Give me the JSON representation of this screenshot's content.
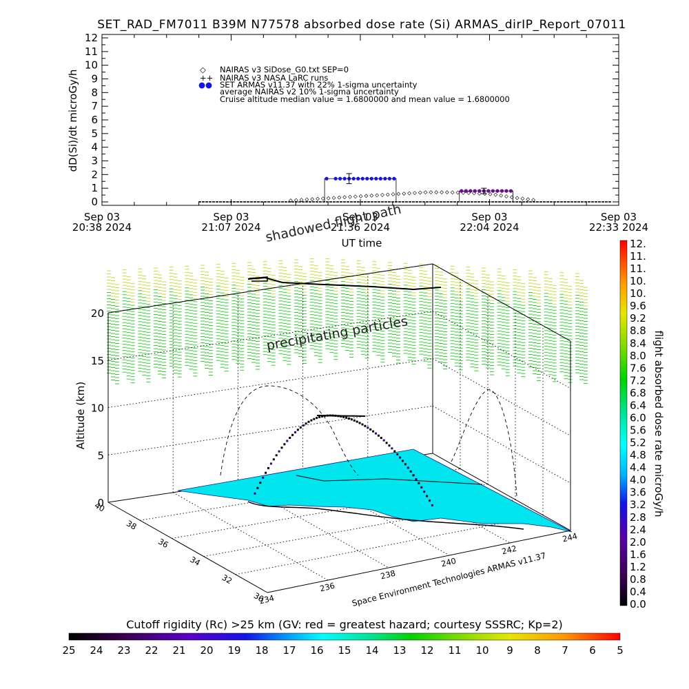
{
  "header": {
    "title": "SET_RAD_FM7011  B39M N77578 absorbed dose rate (Si) ARMAS_dirIP_Report_07011"
  },
  "top_plot": {
    "ylabel": "dD(Si)/dt microGy/h",
    "xlabel": "UT time",
    "y_ticks": [
      "0",
      "1",
      "2",
      "3",
      "4",
      "5",
      "6",
      "7",
      "8",
      "9",
      "10",
      "11",
      "12"
    ],
    "x_ticks": [
      {
        "date": "Sep 03",
        "time": "20:38 2024"
      },
      {
        "date": "Sep 03",
        "time": "21:07 2024"
      },
      {
        "date": "Sep 03",
        "time": "21:36 2024"
      },
      {
        "date": "Sep 03",
        "time": "22:04 2024"
      },
      {
        "date": "Sep 03",
        "time": "22:33 2024"
      }
    ],
    "legend": [
      {
        "symbol": "◇",
        "text": "NAIRAS v3 SiDose_G0.txt SEP=0"
      },
      {
        "symbol": "++",
        "text": "NAIRAS v3 NASA LaRC runs"
      },
      {
        "symbol": "●●",
        "text": "SET ARMAS v11.37 with 22% 1-sigma uncertainty"
      },
      {
        "symbol": "",
        "text": "average NAIRAS v2 10% 1-sigma uncertainty"
      },
      {
        "symbol": "",
        "text": "Cruise altitude median value =  1.6800000 and mean value =  1.6800000"
      }
    ]
  },
  "annotations": {
    "shadowed": "shadowed flight path",
    "precip": "precipitating particles"
  },
  "globe": {
    "ylabel": "Altitude (km)",
    "alt_ticks": [
      "0",
      "5",
      "10",
      "15",
      "20"
    ],
    "lat_ticks": [
      "30",
      "32",
      "34",
      "36",
      "38",
      "40"
    ],
    "lon_ticks": [
      "234",
      "236",
      "238",
      "240",
      "242",
      "244"
    ],
    "credit": "Space Environment Technologies ARMAS v11.37"
  },
  "colorbar_right": {
    "label": "flight absorbed dose rate microGy/h",
    "ticks": [
      "0.0",
      "0.4",
      "0.8",
      "1.2",
      "1.6",
      "2.0",
      "2.4",
      "2.8",
      "3.2",
      "3.6",
      "4.0",
      "4.4",
      "4.8",
      "5.2",
      "5.6",
      "6.0",
      "6.4",
      "6.8",
      "7.2",
      "7.6",
      "8.0",
      "8.4",
      "8.8",
      "9.2",
      "9.6",
      "10.",
      "10.",
      "11.",
      "11.",
      "12."
    ]
  },
  "colorbar_bottom": {
    "label": "Cutoff rigidity (Rc) >25 km (GV: red = greatest hazard; courtesy SSSRC; Kp=2)",
    "ticks": [
      "25",
      "24",
      "23",
      "22",
      "21",
      "20",
      "19",
      "18",
      "17",
      "16",
      "15",
      "14",
      "13",
      "12",
      "11",
      "10",
      "9",
      "8",
      "7",
      "6",
      "5"
    ]
  },
  "colors": {
    "armas": "#1414e6",
    "armas_late": "#6a0a8c",
    "ground": "#00e5ee",
    "precip": "#33cc33",
    "precip_high": "#c8d93a"
  },
  "chart_data": [
    {
      "type": "scatter",
      "title": "SET_RAD_FM7011  B39M N77578 absorbed dose rate (Si) ARMAS_dirIP_Report_07011",
      "xlabel": "UT time",
      "ylabel": "dD(Si)/dt microGy/h",
      "x_range": [
        "2024-09-03 20:38",
        "2024-09-03 22:33"
      ],
      "ylim": [
        0,
        12
      ],
      "series": [
        {
          "name": "SET ARMAS v11.37 with 22% 1-sigma uncertainty",
          "x": [
            "21:28",
            "21:30",
            "21:31",
            "21:32",
            "21:33",
            "21:34",
            "21:35",
            "21:36",
            "21:37",
            "21:38",
            "21:39",
            "21:40",
            "21:41",
            "21:42",
            "21:43",
            "21:58",
            "21:59",
            "22:00",
            "22:01",
            "22:02",
            "22:03",
            "22:04",
            "22:05",
            "22:06",
            "22:07",
            "22:08",
            "22:09"
          ],
          "y": [
            1.7,
            1.7,
            1.7,
            1.7,
            1.7,
            1.7,
            1.7,
            1.7,
            1.7,
            1.7,
            1.7,
            1.7,
            1.7,
            1.7,
            1.7,
            0.8,
            0.8,
            0.8,
            0.8,
            0.8,
            0.8,
            0.8,
            0.8,
            0.8,
            0.8,
            0.8,
            0.8
          ]
        },
        {
          "name": "NAIRAS v3 SiDose_G0.txt SEP=0",
          "x": [
            "21:20",
            "21:25",
            "21:30",
            "21:35",
            "21:40",
            "21:45",
            "21:50",
            "21:55",
            "22:00",
            "22:05",
            "22:10",
            "22:15"
          ],
          "y": [
            0.1,
            0.2,
            0.3,
            0.4,
            0.5,
            0.6,
            0.7,
            0.7,
            0.65,
            0.55,
            0.3,
            0.1
          ]
        }
      ],
      "error_bars": [
        {
          "x": "21:33",
          "y": 1.7,
          "err": 0.37
        },
        {
          "x": "22:03",
          "y": 0.8,
          "err": 0.2
        }
      ]
    },
    {
      "type": "scatter",
      "subtype": "3d-flight-track",
      "ylabel": "Altitude (km)",
      "zlim_km": [
        0,
        20
      ],
      "lat_range": [
        30,
        40
      ],
      "lon_range": [
        234,
        244
      ],
      "cruise_altitude_km": 10.5,
      "colorbar": {
        "label": "flight absorbed dose rate microGy/h",
        "range": [
          0,
          12
        ]
      },
      "surface_colorbar": {
        "label": "Cutoff rigidity (Rc) >25 km (GV: red = greatest hazard; courtesy SSSRC; Kp=2)",
        "range": [
          25,
          5
        ]
      }
    }
  ]
}
